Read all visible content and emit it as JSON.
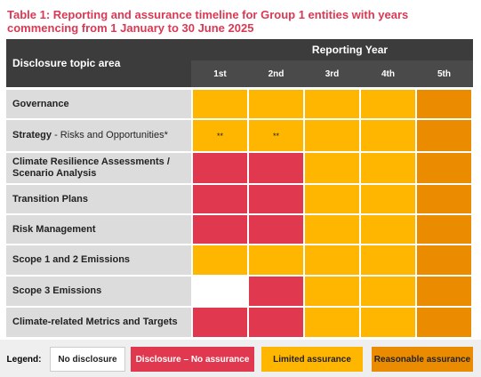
{
  "title_lines": [
    "Table 1: Reporting and assurance timeline for Group 1 entities with years",
    "commencing from 1 January to 30 June 2025"
  ],
  "table": {
    "topic_header": "Disclosure topic area",
    "year_header": "Reporting Year",
    "years": [
      "1st",
      "2nd",
      "3rd",
      "4th",
      "5th"
    ],
    "rows": [
      {
        "label": "Governance",
        "cells": [
          {
            "fill": "#ffb600"
          },
          {
            "fill": "#ffb600"
          },
          {
            "fill": "#ffb600"
          },
          {
            "fill": "#ffb600"
          },
          {
            "fill": "#eb8c00"
          }
        ]
      },
      {
        "label": "Strategy",
        "sublabel": " - Risks and Opportunities*",
        "cells": [
          {
            "fill": "#ffb600",
            "mark": "**"
          },
          {
            "fill": "#ffb600",
            "mark": "**"
          },
          {
            "fill": "#ffb600"
          },
          {
            "fill": "#ffb600"
          },
          {
            "fill": "#eb8c00"
          }
        ]
      },
      {
        "label": "Climate Resilience Assessments / Scenario Analysis",
        "cells": [
          {
            "fill": "#e0384f"
          },
          {
            "fill": "#e0384f"
          },
          {
            "fill": "#ffb600"
          },
          {
            "fill": "#ffb600"
          },
          {
            "fill": "#eb8c00"
          }
        ]
      },
      {
        "label": "Transition Plans",
        "cells": [
          {
            "fill": "#e0384f"
          },
          {
            "fill": "#e0384f"
          },
          {
            "fill": "#ffb600"
          },
          {
            "fill": "#ffb600"
          },
          {
            "fill": "#eb8c00"
          }
        ]
      },
      {
        "label": "Risk Management",
        "cells": [
          {
            "fill": "#e0384f"
          },
          {
            "fill": "#e0384f"
          },
          {
            "fill": "#ffb600"
          },
          {
            "fill": "#ffb600"
          },
          {
            "fill": "#eb8c00"
          }
        ]
      },
      {
        "label": "Scope 1 and 2 Emissions",
        "cells": [
          {
            "fill": "#ffb600"
          },
          {
            "fill": "#ffb600"
          },
          {
            "fill": "#ffb600"
          },
          {
            "fill": "#ffb600"
          },
          {
            "fill": "#eb8c00"
          }
        ]
      },
      {
        "label": "Scope 3 Emissions",
        "cells": [
          {
            "fill": "#ffffff"
          },
          {
            "fill": "#e0384f"
          },
          {
            "fill": "#ffb600"
          },
          {
            "fill": "#ffb600"
          },
          {
            "fill": "#eb8c00"
          }
        ]
      },
      {
        "label": "Climate-related Metrics and Targets",
        "cells": [
          {
            "fill": "#e0384f"
          },
          {
            "fill": "#e0384f"
          },
          {
            "fill": "#ffb600"
          },
          {
            "fill": "#ffb600"
          },
          {
            "fill": "#eb8c00"
          }
        ]
      }
    ]
  },
  "legend": {
    "title": "Legend:",
    "items": [
      {
        "label": "No disclosure",
        "color": "#ffffff"
      },
      {
        "label": "Disclosure – No assurance",
        "color": "#e0384f"
      },
      {
        "label": "Limited assurance",
        "color": "#ffb600"
      },
      {
        "label": "Reasonable assurance",
        "color": "#eb8c00"
      }
    ]
  }
}
